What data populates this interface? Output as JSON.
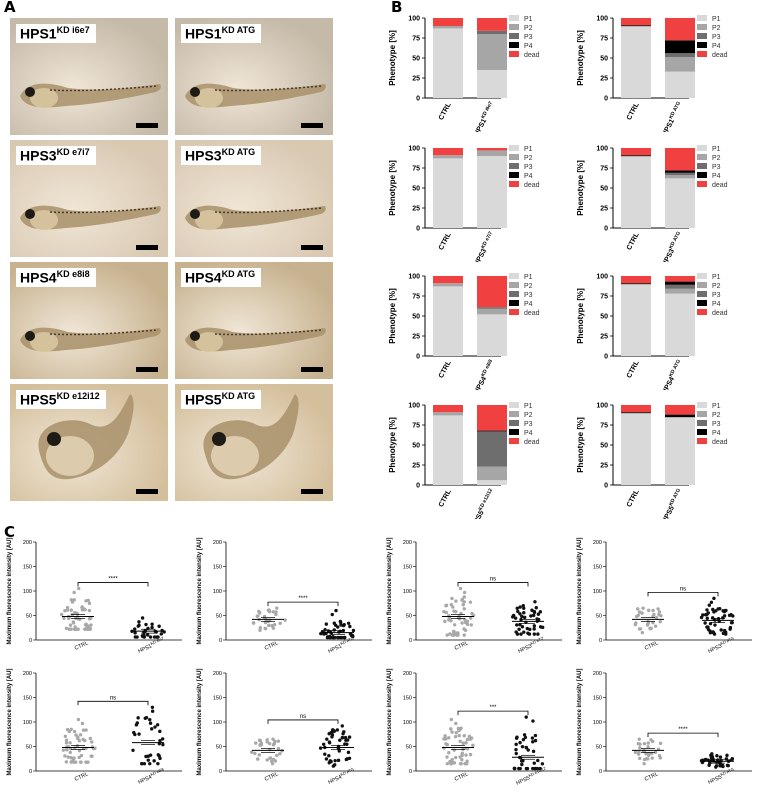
{
  "figure": {
    "panel_a_letter": "A",
    "panel_b_letter": "B",
    "panel_c_letter": "C",
    "photo_bg_colors": [
      "#c5b9a8",
      "#d9c9b3",
      "#c7b28f",
      "#d4bf9c"
    ]
  },
  "panel_a": {
    "photos": [
      {
        "base": "HPS1",
        "sup": "KD i6e7"
      },
      {
        "base": "HPS1",
        "sup": "KD ATG"
      },
      {
        "base": "HPS3",
        "sup": "KD e7i7"
      },
      {
        "base": "HPS3",
        "sup": "KD ATG"
      },
      {
        "base": "HPS4",
        "sup": "KD e8i8"
      },
      {
        "base": "HPS4",
        "sup": "KD ATG"
      },
      {
        "base": "HPS5",
        "sup": "KD e12i12"
      },
      {
        "base": "HPS5",
        "sup": "KD ATG"
      }
    ]
  },
  "chart_data": [
    {
      "type": "bar",
      "stacked": true,
      "panel": "B",
      "ylabel": "Phenotype [%]",
      "ylim": [
        0,
        100
      ],
      "yticks": [
        0,
        25,
        50,
        75,
        100
      ],
      "categories": [
        {
          "base": "CTRL",
          "sup": ""
        },
        {
          "base": "HPS1",
          "sup": "KD i6e7"
        }
      ],
      "legend": [
        "P1",
        "P2",
        "P3",
        "P4",
        "dead"
      ],
      "legend_position": "right",
      "colors": {
        "P1": "#d9d9d9",
        "P2": "#a6a6a6",
        "P3": "#6e6e6e",
        "P4": "#000000",
        "dead": "#f04040"
      },
      "series": [
        {
          "name": "P1",
          "values": [
            87,
            35
          ]
        },
        {
          "name": "P2",
          "values": [
            3,
            45
          ]
        },
        {
          "name": "P3",
          "values": [
            0,
            4
          ]
        },
        {
          "name": "P4",
          "values": [
            0,
            0
          ]
        },
        {
          "name": "dead",
          "values": [
            10,
            16
          ]
        }
      ]
    },
    {
      "type": "bar",
      "stacked": true,
      "panel": "B",
      "ylabel": "Phenotype [%]",
      "ylim": [
        0,
        100
      ],
      "yticks": [
        0,
        25,
        50,
        75,
        100
      ],
      "categories": [
        {
          "base": "CTRL",
          "sup": ""
        },
        {
          "base": "HPS1",
          "sup": "KD ATG"
        }
      ],
      "legend": [
        "P1",
        "P2",
        "P3",
        "P4",
        "dead"
      ],
      "legend_position": "right",
      "colors": {
        "P1": "#d9d9d9",
        "P2": "#a6a6a6",
        "P3": "#6e6e6e",
        "P4": "#000000",
        "dead": "#f04040"
      },
      "series": [
        {
          "name": "P1",
          "values": [
            89,
            33
          ]
        },
        {
          "name": "P2",
          "values": [
            1,
            18
          ]
        },
        {
          "name": "P3",
          "values": [
            0,
            5
          ]
        },
        {
          "name": "P4",
          "values": [
            1,
            16
          ]
        },
        {
          "name": "dead",
          "values": [
            9,
            28
          ]
        }
      ]
    },
    {
      "type": "bar",
      "stacked": true,
      "panel": "B",
      "ylabel": "Phenotype [%]",
      "ylim": [
        0,
        100
      ],
      "yticks": [
        0,
        25,
        50,
        75,
        100
      ],
      "categories": [
        {
          "base": "CTRL",
          "sup": ""
        },
        {
          "base": "HPS3",
          "sup": "KD e7i7"
        }
      ],
      "legend": [
        "P1",
        "P2",
        "P3",
        "P4",
        "dead"
      ],
      "legend_position": "right",
      "colors": {
        "P1": "#d9d9d9",
        "P2": "#a6a6a6",
        "P3": "#6e6e6e",
        "P4": "#000000",
        "dead": "#f04040"
      },
      "series": [
        {
          "name": "P1",
          "values": [
            87,
            90
          ]
        },
        {
          "name": "P2",
          "values": [
            4,
            7
          ]
        },
        {
          "name": "P3",
          "values": [
            0,
            0
          ]
        },
        {
          "name": "P4",
          "values": [
            0,
            0
          ]
        },
        {
          "name": "dead",
          "values": [
            9,
            3
          ]
        }
      ]
    },
    {
      "type": "bar",
      "stacked": true,
      "panel": "B",
      "ylabel": "Phenotype [%]",
      "ylim": [
        0,
        100
      ],
      "yticks": [
        0,
        25,
        50,
        75,
        100
      ],
      "categories": [
        {
          "base": "CTRL",
          "sup": ""
        },
        {
          "base": "HPS3",
          "sup": "KD ATG"
        }
      ],
      "legend": [
        "P1",
        "P2",
        "P3",
        "P4",
        "dead"
      ],
      "legend_position": "right",
      "colors": {
        "P1": "#d9d9d9",
        "P2": "#a6a6a6",
        "P3": "#6e6e6e",
        "P4": "#000000",
        "dead": "#f04040"
      },
      "series": [
        {
          "name": "P1",
          "values": [
            89,
            62
          ]
        },
        {
          "name": "P2",
          "values": [
            1,
            4
          ]
        },
        {
          "name": "P3",
          "values": [
            0,
            3
          ]
        },
        {
          "name": "P4",
          "values": [
            1,
            3
          ]
        },
        {
          "name": "dead",
          "values": [
            9,
            28
          ]
        }
      ]
    },
    {
      "type": "bar",
      "stacked": true,
      "panel": "B",
      "ylabel": "Phenotype [%]",
      "ylim": [
        0,
        100
      ],
      "yticks": [
        0,
        25,
        50,
        75,
        100
      ],
      "categories": [
        {
          "base": "CTRL",
          "sup": ""
        },
        {
          "base": "HPS4",
          "sup": "KD e8i8"
        }
      ],
      "legend": [
        "P1",
        "P2",
        "P3",
        "P4",
        "dead"
      ],
      "legend_position": "right",
      "colors": {
        "P1": "#d9d9d9",
        "P2": "#a6a6a6",
        "P3": "#6e6e6e",
        "P4": "#000000",
        "dead": "#f04040"
      },
      "series": [
        {
          "name": "P1",
          "values": [
            87,
            52
          ]
        },
        {
          "name": "P2",
          "values": [
            4,
            7
          ]
        },
        {
          "name": "P3",
          "values": [
            0,
            2
          ]
        },
        {
          "name": "P4",
          "values": [
            0,
            0
          ]
        },
        {
          "name": "dead",
          "values": [
            9,
            39
          ]
        }
      ]
    },
    {
      "type": "bar",
      "stacked": true,
      "panel": "B",
      "ylabel": "Phenotype [%]",
      "ylim": [
        0,
        100
      ],
      "yticks": [
        0,
        25,
        50,
        75,
        100
      ],
      "categories": [
        {
          "base": "CTRL",
          "sup": ""
        },
        {
          "base": "HPS4",
          "sup": "KD ATG"
        }
      ],
      "legend": [
        "P1",
        "P2",
        "P3",
        "P4",
        "dead"
      ],
      "legend_position": "right",
      "colors": {
        "P1": "#d9d9d9",
        "P2": "#a6a6a6",
        "P3": "#6e6e6e",
        "P4": "#000000",
        "dead": "#f04040"
      },
      "series": [
        {
          "name": "P1",
          "values": [
            89,
            78
          ]
        },
        {
          "name": "P2",
          "values": [
            1,
            6
          ]
        },
        {
          "name": "P3",
          "values": [
            0,
            5
          ]
        },
        {
          "name": "P4",
          "values": [
            1,
            4
          ]
        },
        {
          "name": "dead",
          "values": [
            9,
            7
          ]
        }
      ]
    },
    {
      "type": "bar",
      "stacked": true,
      "panel": "B",
      "ylabel": "Phenotype [%]",
      "ylim": [
        0,
        100
      ],
      "yticks": [
        0,
        25,
        50,
        75,
        100
      ],
      "categories": [
        {
          "base": "CTRL",
          "sup": ""
        },
        {
          "base": "HPS5",
          "sup": "KD e12i12"
        }
      ],
      "legend": [
        "P1",
        "P2",
        "P3",
        "P4",
        "dead"
      ],
      "legend_position": "right",
      "colors": {
        "P1": "#d9d9d9",
        "P2": "#a6a6a6",
        "P3": "#6e6e6e",
        "P4": "#000000",
        "dead": "#f04040"
      },
      "series": [
        {
          "name": "P1",
          "values": [
            87,
            6
          ]
        },
        {
          "name": "P2",
          "values": [
            4,
            17
          ]
        },
        {
          "name": "P3",
          "values": [
            0,
            44
          ]
        },
        {
          "name": "P4",
          "values": [
            0,
            1
          ]
        },
        {
          "name": "dead",
          "values": [
            9,
            32
          ]
        }
      ]
    },
    {
      "type": "bar",
      "stacked": true,
      "panel": "B",
      "ylabel": "Phenotype [%]",
      "ylim": [
        0,
        100
      ],
      "yticks": [
        0,
        25,
        50,
        75,
        100
      ],
      "categories": [
        {
          "base": "CTRL",
          "sup": ""
        },
        {
          "base": "HPS5",
          "sup": "KD ATG"
        }
      ],
      "legend": [
        "P1",
        "P2",
        "P3",
        "P4",
        "dead"
      ],
      "legend_position": "right",
      "colors": {
        "P1": "#d9d9d9",
        "P2": "#a6a6a6",
        "P3": "#6e6e6e",
        "P4": "#000000",
        "dead": "#f04040"
      },
      "series": [
        {
          "name": "P1",
          "values": [
            89,
            84
          ]
        },
        {
          "name": "P2",
          "values": [
            1,
            1
          ]
        },
        {
          "name": "P3",
          "values": [
            0,
            0
          ]
        },
        {
          "name": "P4",
          "values": [
            1,
            3
          ]
        },
        {
          "name": "dead",
          "values": [
            9,
            12
          ]
        }
      ]
    },
    {
      "type": "scatter",
      "panel": "C",
      "ylabel": "Maximum fluorescence intensity [AU]",
      "ylim": [
        0,
        200
      ],
      "yticks": [
        0,
        50,
        100,
        150,
        200
      ],
      "categories": [
        {
          "base": "CTRL",
          "sup": ""
        },
        {
          "base": "HPS1",
          "sup": "KD i6e7"
        }
      ],
      "significance": "****",
      "colors": [
        "#a8a8a8",
        "#111111"
      ],
      "means": [
        48,
        18
      ],
      "spread": [
        [
          22,
          105
        ],
        [
          6,
          45
        ]
      ],
      "counts": [
        56,
        32
      ]
    },
    {
      "type": "scatter",
      "panel": "C",
      "ylabel": "Maximum fluorescence intensity [AU]",
      "ylim": [
        0,
        200
      ],
      "yticks": [
        0,
        50,
        100,
        150,
        200
      ],
      "categories": [
        {
          "base": "CTRL",
          "sup": ""
        },
        {
          "base": "HPS1",
          "sup": "KD ATG"
        }
      ],
      "significance": "****",
      "colors": [
        "#a8a8a8",
        "#111111"
      ],
      "means": [
        42,
        15
      ],
      "spread": [
        [
          20,
          65
        ],
        [
          5,
          60
        ]
      ],
      "counts": [
        30,
        48
      ]
    },
    {
      "type": "scatter",
      "panel": "C",
      "ylabel": "Maximum fluorescence intensity [AU]",
      "ylim": [
        0,
        200
      ],
      "yticks": [
        0,
        50,
        100,
        150,
        200
      ],
      "categories": [
        {
          "base": "CTRL",
          "sup": ""
        },
        {
          "base": "HPS3",
          "sup": "KD e7i7"
        }
      ],
      "significance": "ns",
      "colors": [
        "#a8a8a8",
        "#111111"
      ],
      "means": [
        48,
        38
      ],
      "spread": [
        [
          10,
          105
        ],
        [
          12,
          78
        ]
      ],
      "counts": [
        56,
        44
      ]
    },
    {
      "type": "scatter",
      "panel": "C",
      "ylabel": "Maximum fluorescence intensity [AU]",
      "ylim": [
        0,
        200
      ],
      "yticks": [
        0,
        50,
        100,
        150,
        200
      ],
      "categories": [
        {
          "base": "CTRL",
          "sup": ""
        },
        {
          "base": "HPS3",
          "sup": "KD ATG"
        }
      ],
      "significance": "ns",
      "colors": [
        "#a8a8a8",
        "#111111"
      ],
      "means": [
        42,
        40
      ],
      "spread": [
        [
          15,
          65
        ],
        [
          12,
          85
        ]
      ],
      "counts": [
        30,
        48
      ]
    },
    {
      "type": "scatter",
      "panel": "C",
      "ylabel": "Maximum fluorescence intensity [AU]",
      "ylim": [
        0,
        200
      ],
      "yticks": [
        0,
        50,
        100,
        150,
        200
      ],
      "categories": [
        {
          "base": "CTRL",
          "sup": ""
        },
        {
          "base": "HPS4",
          "sup": "KD e8i8"
        }
      ],
      "significance": "ns",
      "colors": [
        "#a8a8a8",
        "#111111"
      ],
      "means": [
        48,
        58
      ],
      "spread": [
        [
          18,
          105
        ],
        [
          15,
          130
        ]
      ],
      "counts": [
        56,
        34
      ]
    },
    {
      "type": "scatter",
      "panel": "C",
      "ylabel": "Maximum fluorescence intensity [AU]",
      "ylim": [
        0,
        200
      ],
      "yticks": [
        0,
        50,
        100,
        150,
        200
      ],
      "categories": [
        {
          "base": "CTRL",
          "sup": ""
        },
        {
          "base": "HPS4",
          "sup": "KD ATG"
        }
      ],
      "significance": "ns",
      "colors": [
        "#a8a8a8",
        "#111111"
      ],
      "means": [
        42,
        48
      ],
      "spread": [
        [
          15,
          65
        ],
        [
          10,
          92
        ]
      ],
      "counts": [
        30,
        48
      ]
    },
    {
      "type": "scatter",
      "panel": "C",
      "ylabel": "Maximum fluorescence intensity [AU]",
      "ylim": [
        0,
        200
      ],
      "yticks": [
        0,
        50,
        100,
        150,
        200
      ],
      "categories": [
        {
          "base": "CTRL",
          "sup": ""
        },
        {
          "base": "HPS5",
          "sup": "KD e12i12"
        }
      ],
      "significance": "***",
      "colors": [
        "#a8a8a8",
        "#111111"
      ],
      "means": [
        48,
        28
      ],
      "spread": [
        [
          15,
          105
        ],
        [
          5,
          110
        ]
      ],
      "counts": [
        56,
        40
      ]
    },
    {
      "type": "scatter",
      "panel": "C",
      "ylabel": "Maximum fluorescence intensity [AU]",
      "ylim": [
        0,
        200
      ],
      "yticks": [
        0,
        50,
        100,
        150,
        200
      ],
      "categories": [
        {
          "base": "CTRL",
          "sup": ""
        },
        {
          "base": "HPS5",
          "sup": "KD ATG"
        }
      ],
      "significance": "****",
      "colors": [
        "#a8a8a8",
        "#111111"
      ],
      "means": [
        42,
        20
      ],
      "spread": [
        [
          15,
          65
        ],
        [
          8,
          35
        ]
      ],
      "counts": [
        30,
        40
      ]
    }
  ]
}
